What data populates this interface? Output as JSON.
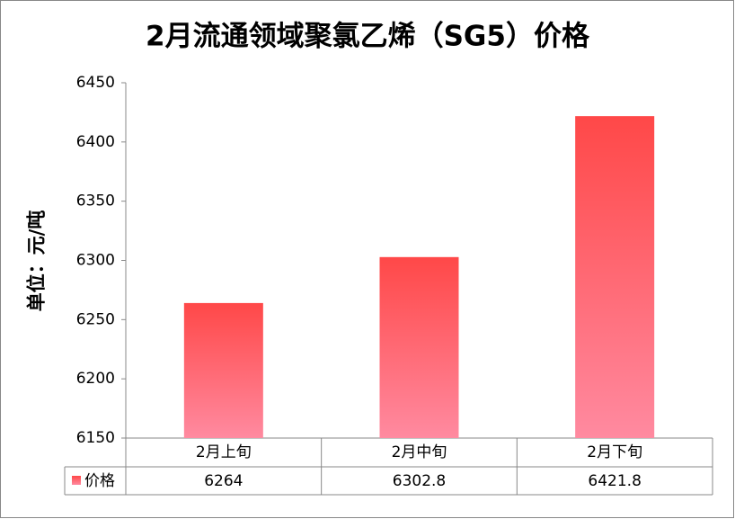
{
  "chart_data": {
    "type": "bar",
    "title": "2月流通领域聚氯乙烯（SG5）价格",
    "y_label": "单位：元/吨",
    "categories": [
      "2月上旬",
      "2月中旬",
      "2月下旬"
    ],
    "series": [
      {
        "name": "价格",
        "color": "#ff4848",
        "values": [
          6264,
          6302.8,
          6421.8
        ]
      }
    ],
    "ylim": [
      6150,
      6450
    ],
    "yticks": [
      6150,
      6200,
      6250,
      6300,
      6350,
      6400,
      6450
    ],
    "grid": false
  }
}
